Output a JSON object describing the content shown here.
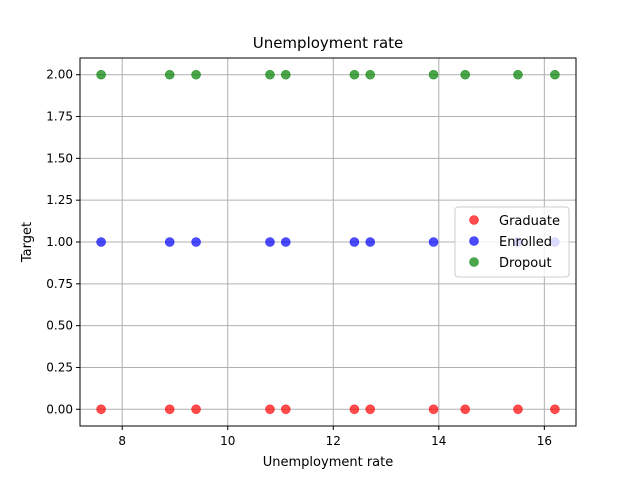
{
  "chart_data": {
    "type": "scatter",
    "title": "Unemployment rate",
    "xlabel": "Unemployment rate",
    "ylabel": "Target",
    "xlim": [
      7.2,
      16.6
    ],
    "ylim": [
      -0.1,
      2.1
    ],
    "xticks": [
      8,
      10,
      12,
      14,
      16
    ],
    "xtick_labels": [
      "8",
      "10",
      "12",
      "14",
      "16"
    ],
    "yticks": [
      0.0,
      0.25,
      0.5,
      0.75,
      1.0,
      1.25,
      1.5,
      1.75,
      2.0
    ],
    "ytick_labels": [
      "0.00",
      "0.25",
      "0.50",
      "0.75",
      "1.00",
      "1.25",
      "1.50",
      "1.75",
      "2.00"
    ],
    "grid": true,
    "legend_position": "center-right",
    "marker_alpha": 0.7,
    "series": [
      {
        "name": "Graduate",
        "color": "#ff0000",
        "points": [
          [
            7.6,
            0
          ],
          [
            8.9,
            0
          ],
          [
            9.4,
            0
          ],
          [
            10.8,
            0
          ],
          [
            11.1,
            0
          ],
          [
            12.4,
            0
          ],
          [
            12.7,
            0
          ],
          [
            13.9,
            0
          ],
          [
            14.5,
            0
          ],
          [
            15.5,
            0
          ],
          [
            16.2,
            0
          ]
        ]
      },
      {
        "name": "Enrolled",
        "color": "#0000ff",
        "points": [
          [
            7.6,
            1
          ],
          [
            8.9,
            1
          ],
          [
            9.4,
            1
          ],
          [
            10.8,
            1
          ],
          [
            11.1,
            1
          ],
          [
            12.4,
            1
          ],
          [
            12.7,
            1
          ],
          [
            13.9,
            1
          ],
          [
            15.5,
            1
          ],
          [
            16.2,
            1
          ]
        ]
      },
      {
        "name": "Dropout",
        "color": "#008000",
        "points": [
          [
            7.6,
            2
          ],
          [
            8.9,
            2
          ],
          [
            9.4,
            2
          ],
          [
            10.8,
            2
          ],
          [
            11.1,
            2
          ],
          [
            12.4,
            2
          ],
          [
            12.7,
            2
          ],
          [
            13.9,
            2
          ],
          [
            14.5,
            2
          ],
          [
            15.5,
            2
          ],
          [
            16.2,
            2
          ]
        ]
      }
    ]
  }
}
